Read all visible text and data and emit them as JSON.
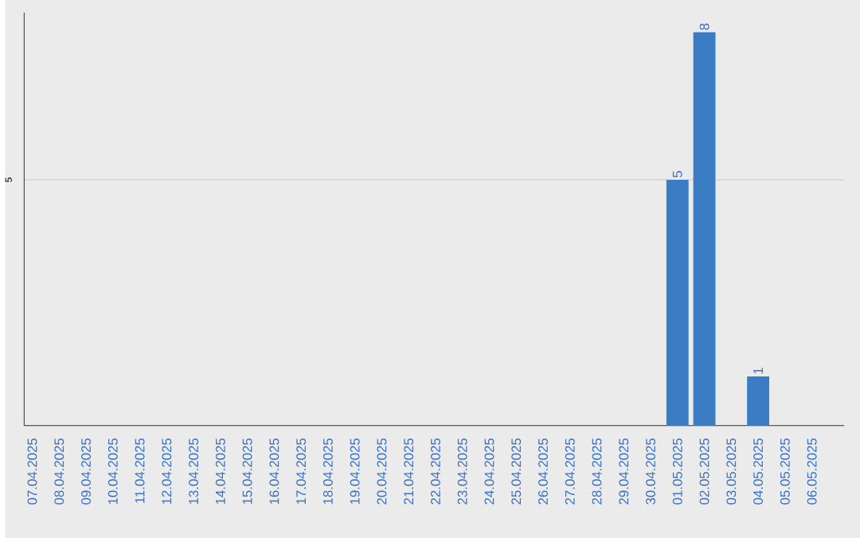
{
  "chart_data": {
    "type": "bar",
    "categories": [
      "07.04.2025",
      "08.04.2025",
      "09.04.2025",
      "10.04.2025",
      "11.04.2025",
      "12.04.2025",
      "13.04.2025",
      "14.04.2025",
      "15.04.2025",
      "16.04.2025",
      "17.04.2025",
      "18.04.2025",
      "19.04.2025",
      "20.04.2025",
      "21.04.2025",
      "22.04.2025",
      "23.04.2025",
      "24.04.2025",
      "25.04.2025",
      "26.04.2025",
      "27.04.2025",
      "28.04.2025",
      "29.04.2025",
      "30.04.2025",
      "01.05.2025",
      "02.05.2025",
      "03.05.2025",
      "04.05.2025",
      "05.05.2025",
      "06.05.2025"
    ],
    "values": [
      null,
      null,
      null,
      null,
      null,
      null,
      null,
      null,
      null,
      null,
      null,
      null,
      null,
      null,
      null,
      null,
      null,
      null,
      null,
      null,
      null,
      null,
      null,
      null,
      5,
      8,
      null,
      1,
      null,
      null
    ],
    "data_labels": true,
    "color": "#3b7dc4",
    "ylim": [
      0,
      8.4
    ],
    "yticks": [
      5
    ],
    "grid": "y"
  }
}
